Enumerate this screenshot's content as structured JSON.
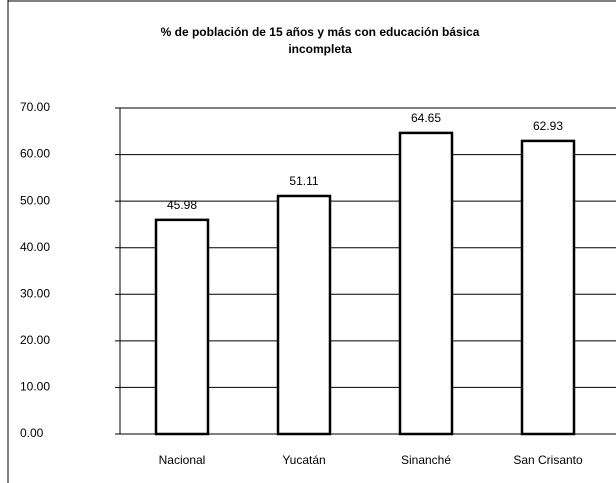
{
  "chart_data": {
    "type": "bar",
    "title": "% de población de 15 años y más con educación básica incompleta",
    "categories": [
      "Nacional",
      "Yucatán",
      "Sinanché",
      "San Crisanto"
    ],
    "values": [
      45.98,
      51.11,
      64.65,
      62.93
    ],
    "color": "#ffffff",
    "ylim": [
      0,
      70
    ],
    "yticks": [
      {
        "value": 0,
        "label": "0.00"
      },
      {
        "value": 10,
        "label": "10.00"
      },
      {
        "value": 20,
        "label": "20.00"
      },
      {
        "value": 30,
        "label": "30.00"
      },
      {
        "value": 40,
        "label": "40.00"
      },
      {
        "value": 50,
        "label": "50.00"
      },
      {
        "value": 60,
        "label": "60.00"
      },
      {
        "value": 70,
        "label": "70.00"
      }
    ],
    "grid": true
  }
}
